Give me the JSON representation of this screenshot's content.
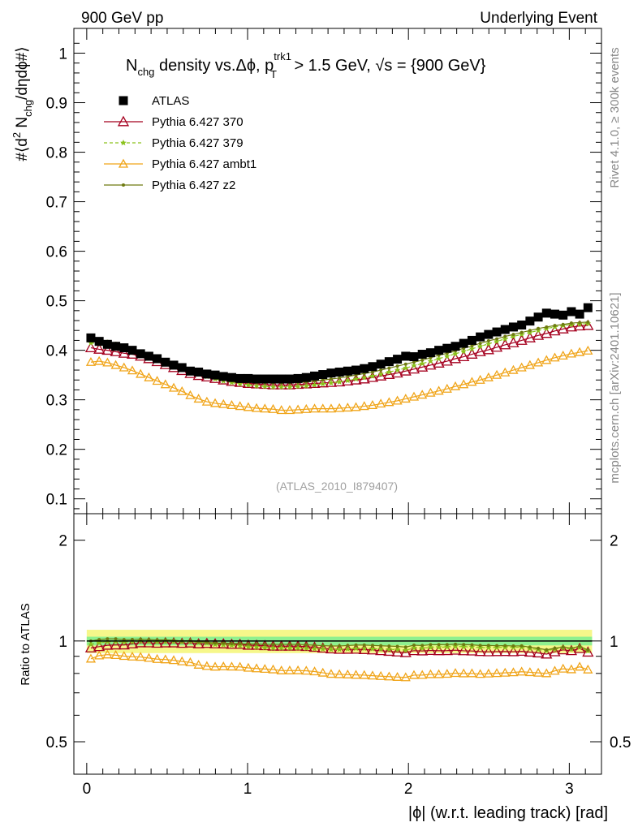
{
  "header": {
    "left": "900 GeV pp",
    "right": "Underlying Event"
  },
  "title": {
    "n": "N",
    "chg": "chg",
    "mid": " density vs.",
    "dphi": "Δϕ, p",
    "sup": "trk1",
    "sub": "T",
    "cut": " > 1.5 GeV, ",
    "sqrt": "√s",
    "energy": " = {900 GeV}"
  },
  "side_texts": {
    "rivet": "Rivet 4.1.0, ≥ 300k events",
    "mcplots": "mcplots.cern.ch [arXiv:2401.10621]"
  },
  "analysis_id": "(ATLAS_2010_I879407)",
  "main_ylabel": {
    "pre": "#⟨d",
    "sq": "2",
    "n": " N",
    "chg": "chg",
    "post": "/dηdϕ#⟩"
  },
  "ratio_ylabel": "Ratio to ATLAS",
  "xlabel": "|ϕ| (w.r.t. leading track) [rad]",
  "colors": {
    "atlas": "#000000",
    "p370": "#a5001f",
    "p379": "#8ac21b",
    "ambt1": "#f0a418",
    "z2": "#6e7a11",
    "band_inner": "#8ff08f",
    "band_outer": "#f6f78a"
  },
  "chart_data": [
    {
      "type": "scatter",
      "title": "Nchg density vs. Δϕ, pT trk1 > 1.5 GeV, √s = {900 GeV}",
      "xlabel": "|ϕ| (w.r.t. leading track) [rad]",
      "ylabel": "#⟨d² Nchg/dηdϕ#⟩",
      "xlim": [
        -0.08,
        3.2
      ],
      "ylim": [
        0.07,
        1.05
      ],
      "x_ticks": [
        "0",
        "1",
        "2",
        "3"
      ],
      "y_ticks": [
        "0.1",
        "0.2",
        "0.3",
        "0.4",
        "0.5",
        "0.6",
        "0.7",
        "0.8",
        "0.9",
        "1"
      ],
      "legend_position": "top-left",
      "series": [
        {
          "name": "ATLAS",
          "values": [
            0.425,
            0.418,
            0.412,
            0.408,
            0.405,
            0.4,
            0.393,
            0.388,
            0.383,
            0.376,
            0.37,
            0.365,
            0.358,
            0.356,
            0.352,
            0.35,
            0.347,
            0.345,
            0.343,
            0.343,
            0.342,
            0.342,
            0.342,
            0.342,
            0.342,
            0.343,
            0.345,
            0.348,
            0.351,
            0.354,
            0.356,
            0.358,
            0.36,
            0.363,
            0.367,
            0.372,
            0.377,
            0.382,
            0.388,
            0.387,
            0.392,
            0.395,
            0.4,
            0.404,
            0.408,
            0.414,
            0.42,
            0.427,
            0.432,
            0.437,
            0.442,
            0.447,
            0.451,
            0.459,
            0.467,
            0.475,
            0.473,
            0.471,
            0.478,
            0.473,
            0.486
          ]
        },
        {
          "name": "Pythia 6.427 370",
          "values": [
            0.405,
            0.402,
            0.4,
            0.397,
            0.394,
            0.392,
            0.388,
            0.383,
            0.377,
            0.371,
            0.365,
            0.359,
            0.353,
            0.349,
            0.346,
            0.343,
            0.34,
            0.337,
            0.335,
            0.333,
            0.332,
            0.331,
            0.33,
            0.33,
            0.33,
            0.331,
            0.332,
            0.333,
            0.334,
            0.335,
            0.336,
            0.338,
            0.34,
            0.342,
            0.345,
            0.348,
            0.351,
            0.354,
            0.358,
            0.362,
            0.366,
            0.37,
            0.374,
            0.378,
            0.383,
            0.387,
            0.392,
            0.397,
            0.401,
            0.406,
            0.411,
            0.415,
            0.42,
            0.425,
            0.43,
            0.434,
            0.439,
            0.443,
            0.447,
            0.449,
            0.45
          ]
        },
        {
          "name": "Pythia 6.427 379",
          "values": [
            0.415,
            0.413,
            0.41,
            0.406,
            0.402,
            0.398,
            0.393,
            0.387,
            0.381,
            0.375,
            0.369,
            0.363,
            0.357,
            0.352,
            0.347,
            0.342,
            0.338,
            0.335,
            0.332,
            0.33,
            0.328,
            0.327,
            0.326,
            0.326,
            0.326,
            0.327,
            0.328,
            0.33,
            0.332,
            0.334,
            0.336,
            0.339,
            0.342,
            0.345,
            0.348,
            0.352,
            0.356,
            0.36,
            0.364,
            0.369,
            0.373,
            0.378,
            0.383,
            0.388,
            0.393,
            0.398,
            0.403,
            0.408,
            0.413,
            0.418,
            0.423,
            0.428,
            0.432,
            0.436,
            0.44,
            0.444,
            0.447,
            0.45,
            0.452,
            0.453,
            0.454
          ]
        },
        {
          "name": "Pythia 6.427 ambt1",
          "values": [
            0.376,
            0.378,
            0.375,
            0.37,
            0.365,
            0.359,
            0.352,
            0.345,
            0.338,
            0.331,
            0.324,
            0.317,
            0.309,
            0.302,
            0.296,
            0.293,
            0.291,
            0.289,
            0.287,
            0.285,
            0.283,
            0.282,
            0.281,
            0.279,
            0.279,
            0.28,
            0.281,
            0.282,
            0.282,
            0.282,
            0.283,
            0.284,
            0.285,
            0.287,
            0.289,
            0.292,
            0.295,
            0.298,
            0.302,
            0.306,
            0.31,
            0.314,
            0.318,
            0.322,
            0.327,
            0.331,
            0.336,
            0.34,
            0.345,
            0.35,
            0.355,
            0.36,
            0.365,
            0.37,
            0.375,
            0.38,
            0.385,
            0.389,
            0.393,
            0.396,
            0.399
          ]
        },
        {
          "name": "Pythia 6.427 z2",
          "values": [
            0.425,
            0.422,
            0.418,
            0.414,
            0.409,
            0.404,
            0.398,
            0.392,
            0.386,
            0.379,
            0.372,
            0.365,
            0.359,
            0.354,
            0.349,
            0.345,
            0.342,
            0.339,
            0.337,
            0.336,
            0.335,
            0.334,
            0.334,
            0.334,
            0.334,
            0.335,
            0.336,
            0.338,
            0.34,
            0.342,
            0.344,
            0.347,
            0.35,
            0.353,
            0.356,
            0.36,
            0.364,
            0.368,
            0.372,
            0.376,
            0.38,
            0.385,
            0.39,
            0.394,
            0.399,
            0.404,
            0.409,
            0.414,
            0.419,
            0.423,
            0.428,
            0.432,
            0.436,
            0.44,
            0.444,
            0.447,
            0.45,
            0.452,
            0.455,
            0.456,
            0.457
          ]
        }
      ]
    },
    {
      "type": "line",
      "title": "Ratio to ATLAS",
      "ylabel": "Ratio to ATLAS",
      "xlim": [
        -0.08,
        3.2
      ],
      "ylim": [
        0.4,
        2.4
      ],
      "y_scale": "log",
      "y_ticks": [
        "0.5",
        "1",
        "2"
      ],
      "reference_band": {
        "inner": [
          0.97,
          1.03
        ],
        "outer": [
          0.92,
          1.08
        ]
      },
      "note": "ratio series computed from the main panel values divided by ATLAS"
    }
  ]
}
